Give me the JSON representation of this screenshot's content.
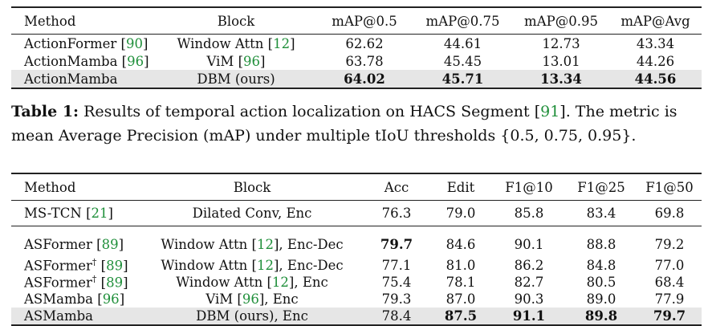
{
  "table1": {
    "headers": [
      "Method",
      "Block",
      "mAP@0.5",
      "mAP@0.75",
      "mAP@0.95",
      "mAP@Avg"
    ],
    "rows": [
      {
        "method": "ActionFormer",
        "method_cite": "90",
        "block": "Window Attn",
        "block_cite": "12",
        "v1": "62.62",
        "v2": "44.61",
        "v3": "12.73",
        "v4": "43.34"
      },
      {
        "method": "ActionMamba",
        "method_cite": "96",
        "block": "ViM",
        "block_cite": "96",
        "v1": "63.78",
        "v2": "45.45",
        "v3": "13.01",
        "v4": "44.26"
      },
      {
        "method": "ActionMamba",
        "block": "DBM (ours)",
        "v1": "64.02",
        "v2": "45.71",
        "v3": "13.34",
        "v4": "44.56"
      }
    ],
    "caption_label": "Table 1:",
    "caption_text1": "Results of temporal action localization on HACS Segment",
    "caption_cite": "91",
    "caption_text2": ". The metric is mean Average Precision (mAP) under multiple tIoU thresholds {0.5, 0.75, 0.95}."
  },
  "table2": {
    "headers": [
      "Method",
      "Block",
      "Acc",
      "Edit",
      "F1@10",
      "F1@25",
      "F1@50"
    ],
    "rows": [
      {
        "method": "MS-TCN",
        "method_cite": "21",
        "block": "Dilated Conv, Enc",
        "acc": "76.3",
        "edit": "79.0",
        "f10": "85.8",
        "f25": "83.4",
        "f50": "69.8"
      },
      {
        "method": "ASFormer",
        "method_cite": "89",
        "block": "Window Attn",
        "block_cite": "12",
        "block_suffix": ", Enc-Dec",
        "acc": "79.7",
        "edit": "84.6",
        "f10": "90.1",
        "f25": "88.8",
        "f50": "79.2"
      },
      {
        "method": "ASFormer",
        "method_sup": "†",
        "method_cite": "89",
        "block": "Window Attn",
        "block_cite": "12",
        "block_suffix": ", Enc-Dec",
        "acc": "77.1",
        "edit": "81.0",
        "f10": "86.2",
        "f25": "84.8",
        "f50": "77.0"
      },
      {
        "method": "ASFormer",
        "method_sup": "†",
        "method_cite": "89",
        "block": "Window Attn",
        "block_cite": "12",
        "block_suffix": ", Enc",
        "acc": "75.4",
        "edit": "78.1",
        "f10": "82.7",
        "f25": "80.5",
        "f50": "68.4"
      },
      {
        "method": "ASMamba",
        "method_cite": "96",
        "block": "ViM",
        "block_cite": "96",
        "block_suffix": ", Enc",
        "acc": "79.3",
        "edit": "87.0",
        "f10": "90.3",
        "f25": "89.0",
        "f50": "77.9"
      },
      {
        "method": "ASMamba",
        "block": "DBM (ours), Enc",
        "acc": "78.4",
        "edit": "87.5",
        "f10": "91.1",
        "f25": "89.8",
        "f50": "79.7"
      }
    ]
  }
}
